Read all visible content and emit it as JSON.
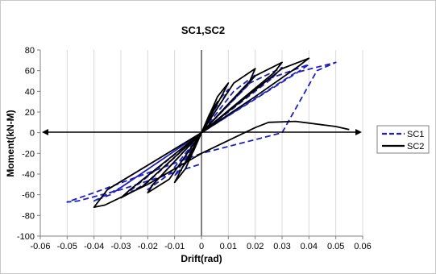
{
  "chart_data": {
    "type": "line",
    "title": "SC1,SC2",
    "xlabel": "Drift(rad)",
    "ylabel": "Moment(kN-M)",
    "xlim": [
      -0.06,
      0.06
    ],
    "ylim": [
      -100,
      80
    ],
    "x_ticks": [
      "-0.06",
      "-0.05",
      "-0.04",
      "-0.03",
      "-0.02",
      "-0.01",
      "0",
      "0.01",
      "0.02",
      "0.03",
      "0.04",
      "0.05",
      "0.06"
    ],
    "y_ticks": [
      "80",
      "60",
      "40",
      "20",
      "0",
      "-20",
      "-40",
      "-60",
      "-80",
      "-100"
    ],
    "grid": "vertical",
    "legend_position": "right",
    "series": [
      {
        "name": "SC1",
        "color": "#1f1fbf",
        "style": "dashed",
        "x": [
          0,
          0.003,
          0.006,
          0.004,
          0,
          -0.003,
          -0.006,
          -0.004,
          0,
          0.006,
          0.01,
          0.008,
          0,
          -0.006,
          -0.01,
          -0.008,
          0,
          0.012,
          0.02,
          0.017,
          0,
          -0.012,
          -0.02,
          -0.017,
          0,
          0.018,
          0.03,
          0.026,
          0,
          -0.02,
          -0.03,
          -0.026,
          0,
          0.025,
          0.04,
          0.035,
          0,
          -0.03,
          -0.04,
          -0.034,
          0,
          0.035,
          0.05,
          0.043,
          0.03,
          0,
          -0.04,
          -0.05,
          -0.046,
          -0.03,
          0
        ],
        "y": [
          0,
          15,
          27,
          20,
          0,
          -15,
          -27,
          -20,
          0,
          30,
          42,
          32,
          0,
          -30,
          -42,
          -33,
          0,
          40,
          56,
          45,
          0,
          -40,
          -55,
          -47,
          0,
          48,
          63,
          52,
          0,
          -48,
          -63,
          -55,
          0,
          52,
          66,
          57,
          0,
          -53,
          -66,
          -60,
          0,
          58,
          68,
          60,
          0,
          -20,
          -58,
          -67,
          -66,
          -55,
          -30
        ]
      },
      {
        "name": "SC2",
        "color": "#000000",
        "style": "solid",
        "x": [
          0,
          0.003,
          0.006,
          0.004,
          0,
          -0.003,
          -0.006,
          -0.004,
          0,
          0.006,
          0.01,
          0.008,
          0,
          -0.006,
          -0.01,
          -0.008,
          0,
          0.012,
          0.02,
          0.018,
          0,
          -0.012,
          -0.02,
          -0.018,
          0,
          0.02,
          0.03,
          0.027,
          0,
          -0.022,
          -0.03,
          -0.027,
          0,
          0.03,
          0.04,
          0.036,
          0.02,
          0,
          -0.035,
          -0.04,
          -0.036,
          -0.02,
          0,
          0.02,
          0.025,
          0.035,
          0.05,
          0.055
        ],
        "y": [
          0,
          18,
          30,
          22,
          0,
          -18,
          -30,
          -22,
          0,
          35,
          48,
          38,
          0,
          -35,
          -48,
          -38,
          0,
          48,
          62,
          50,
          0,
          -45,
          -58,
          -50,
          0,
          55,
          68,
          58,
          0,
          -52,
          -63,
          -56,
          0,
          62,
          72,
          64,
          35,
          0,
          -55,
          -72,
          -70,
          -50,
          -20,
          5,
          10,
          11,
          6,
          3
        ]
      }
    ]
  }
}
